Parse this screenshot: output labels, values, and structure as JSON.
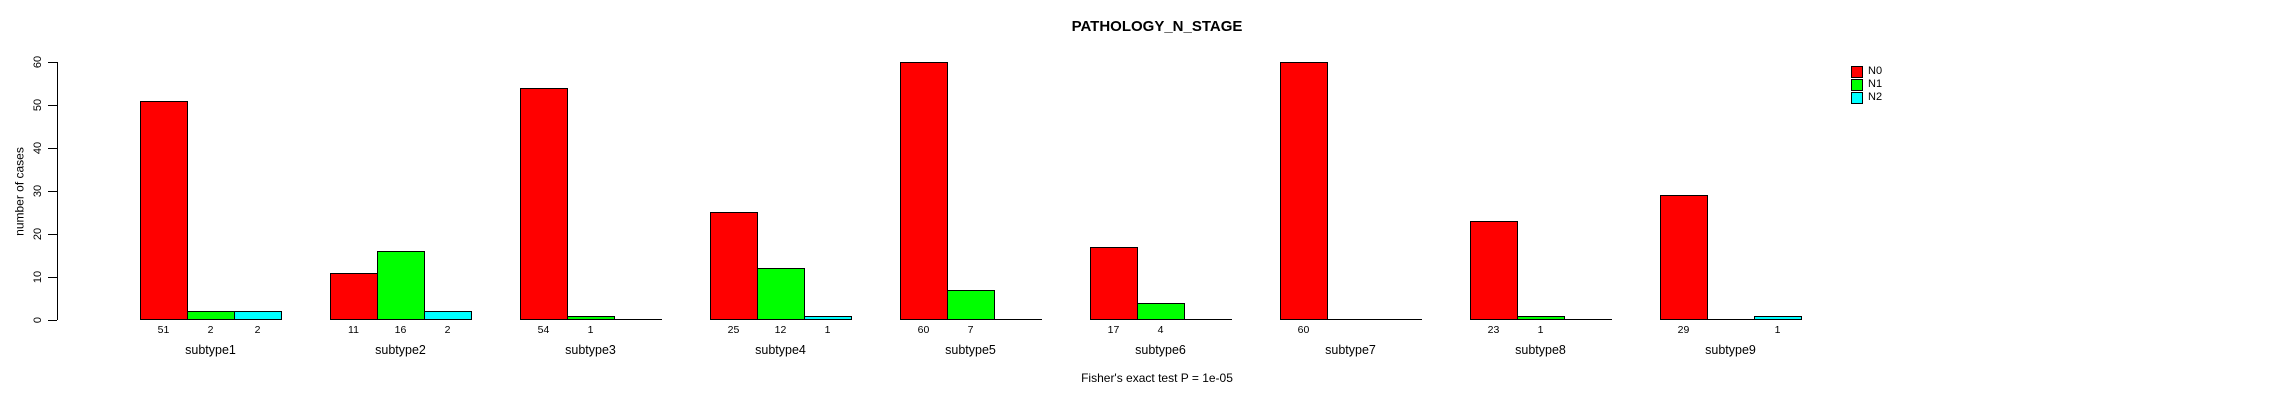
{
  "chart_data": {
    "type": "bar",
    "title": "PATHOLOGY_N_STAGE",
    "ylabel": "number of cases",
    "xlabel": "",
    "caption": "Fisher's exact test P = 1e-05",
    "categories": [
      "subtype1",
      "subtype2",
      "subtype3",
      "subtype4",
      "subtype5",
      "subtype6",
      "subtype7",
      "subtype8",
      "subtype9"
    ],
    "series": [
      {
        "name": "N0",
        "color": "#ff0000",
        "values": [
          51,
          11,
          54,
          25,
          60,
          17,
          60,
          23,
          29
        ]
      },
      {
        "name": "N1",
        "color": "#00ff00",
        "values": [
          2,
          16,
          1,
          12,
          7,
          4,
          0,
          1,
          0
        ]
      },
      {
        "name": "N2",
        "color": "#00ffff",
        "values": [
          2,
          2,
          0,
          1,
          0,
          0,
          0,
          0,
          1
        ]
      }
    ],
    "yticks": [
      0,
      10,
      20,
      30,
      40,
      50,
      60
    ],
    "ylim": [
      0,
      60
    ],
    "grid": false,
    "legend_position": "topright",
    "value_labels_shown_only_when_positive": true
  }
}
